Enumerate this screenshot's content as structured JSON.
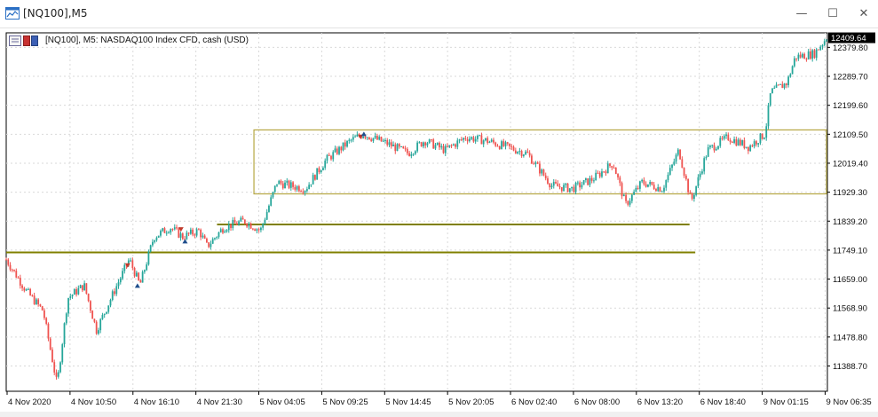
{
  "window": {
    "title": "[NQ100],M5",
    "minimize_icon": "minimize-icon",
    "maximize_icon": "maximize-icon",
    "close_icon": "close-icon"
  },
  "chart": {
    "header_label": "[NQ100], M5:  NASDAQ100 Index CFD, cash (USD)",
    "current_price": "12409.64",
    "colors": {
      "bull": "#26a69a",
      "bear": "#ef5350",
      "wick": "#333333",
      "level_line": "#808000",
      "rectangle": "#b5a642",
      "grid": "#d9d9d9",
      "price_tag_bg": "#000000",
      "price_tag_fg": "#ffffff"
    }
  },
  "chart_data": {
    "type": "candlestick",
    "symbol": "NQ100",
    "timeframe": "M5",
    "y_tick_labels": [
      "12379.80",
      "12289.70",
      "12199.60",
      "12109.50",
      "12019.40",
      "11929.30",
      "11839.20",
      "11749.10",
      "11659.00",
      "11568.90",
      "11478.80",
      "11388.70"
    ],
    "y_tick_values": [
      12379.8,
      12289.7,
      12199.6,
      12109.5,
      12019.4,
      11929.3,
      11839.2,
      11749.1,
      11659.0,
      11568.9,
      11478.8,
      11388.7
    ],
    "ylim": [
      11310,
      12425
    ],
    "x_tick_labels": [
      "4 Nov 2020",
      "4 Nov 10:50",
      "4 Nov 16:10",
      "4 Nov 21:30",
      "5 Nov 04:05",
      "5 Nov 09:25",
      "5 Nov 14:45",
      "5 Nov 20:05",
      "6 Nov 02:40",
      "6 Nov 08:00",
      "6 Nov 13:20",
      "6 Nov 18:40",
      "9 Nov 01:15",
      "9 Nov 06:35"
    ],
    "price_path": [
      {
        "t": 0.0,
        "price": 11720
      },
      {
        "t": 0.025,
        "price": 11620
      },
      {
        "t": 0.045,
        "price": 11560
      },
      {
        "t": 0.062,
        "price": 11330
      },
      {
        "t": 0.075,
        "price": 11600
      },
      {
        "t": 0.095,
        "price": 11640
      },
      {
        "t": 0.11,
        "price": 11500
      },
      {
        "t": 0.135,
        "price": 11640
      },
      {
        "t": 0.15,
        "price": 11720
      },
      {
        "t": 0.163,
        "price": 11640
      },
      {
        "t": 0.18,
        "price": 11790
      },
      {
        "t": 0.2,
        "price": 11820
      },
      {
        "t": 0.215,
        "price": 11790
      },
      {
        "t": 0.235,
        "price": 11810
      },
      {
        "t": 0.245,
        "price": 11760
      },
      {
        "t": 0.265,
        "price": 11820
      },
      {
        "t": 0.29,
        "price": 11840
      },
      {
        "t": 0.31,
        "price": 11810
      },
      {
        "t": 0.33,
        "price": 11960
      },
      {
        "t": 0.345,
        "price": 11950
      },
      {
        "t": 0.365,
        "price": 11940
      },
      {
        "t": 0.39,
        "price": 12030
      },
      {
        "t": 0.42,
        "price": 12090
      },
      {
        "t": 0.435,
        "price": 12110
      },
      {
        "t": 0.465,
        "price": 12080
      },
      {
        "t": 0.49,
        "price": 12050
      },
      {
        "t": 0.51,
        "price": 12090
      },
      {
        "t": 0.535,
        "price": 12060
      },
      {
        "t": 0.56,
        "price": 12100
      },
      {
        "t": 0.585,
        "price": 12090
      },
      {
        "t": 0.61,
        "price": 12070
      },
      {
        "t": 0.635,
        "price": 12050
      },
      {
        "t": 0.665,
        "price": 11950
      },
      {
        "t": 0.69,
        "price": 11940
      },
      {
        "t": 0.715,
        "price": 11970
      },
      {
        "t": 0.74,
        "price": 12020
      },
      {
        "t": 0.755,
        "price": 11890
      },
      {
        "t": 0.775,
        "price": 11960
      },
      {
        "t": 0.8,
        "price": 11940
      },
      {
        "t": 0.82,
        "price": 12060
      },
      {
        "t": 0.835,
        "price": 11900
      },
      {
        "t": 0.855,
        "price": 12060
      },
      {
        "t": 0.88,
        "price": 12100
      },
      {
        "t": 0.905,
        "price": 12070
      },
      {
        "t": 0.925,
        "price": 12110
      },
      {
        "t": 0.932,
        "price": 12240
      },
      {
        "t": 0.952,
        "price": 12270
      },
      {
        "t": 0.962,
        "price": 12350
      },
      {
        "t": 0.985,
        "price": 12360
      },
      {
        "t": 1.0,
        "price": 12409.64
      }
    ],
    "levels": [
      {
        "price": 11829,
        "t_start": 0.257,
        "t_end": 0.833
      },
      {
        "price": 11742,
        "t_start": 0.0,
        "t_end": 0.84
      }
    ],
    "range_box": {
      "price_top": 12123,
      "price_bottom": 11924,
      "t_start": 0.302,
      "t_end": 1.0
    },
    "arrow_markers": [
      {
        "t": 0.148,
        "price": 11700,
        "dir": "down"
      },
      {
        "t": 0.16,
        "price": 11640,
        "dir": "up"
      },
      {
        "t": 0.213,
        "price": 11812,
        "dir": "down"
      },
      {
        "t": 0.218,
        "price": 11778,
        "dir": "up"
      },
      {
        "t": 0.432,
        "price": 12100,
        "dir": "down"
      },
      {
        "t": 0.436,
        "price": 12112,
        "dir": "up"
      }
    ],
    "grid": true
  }
}
